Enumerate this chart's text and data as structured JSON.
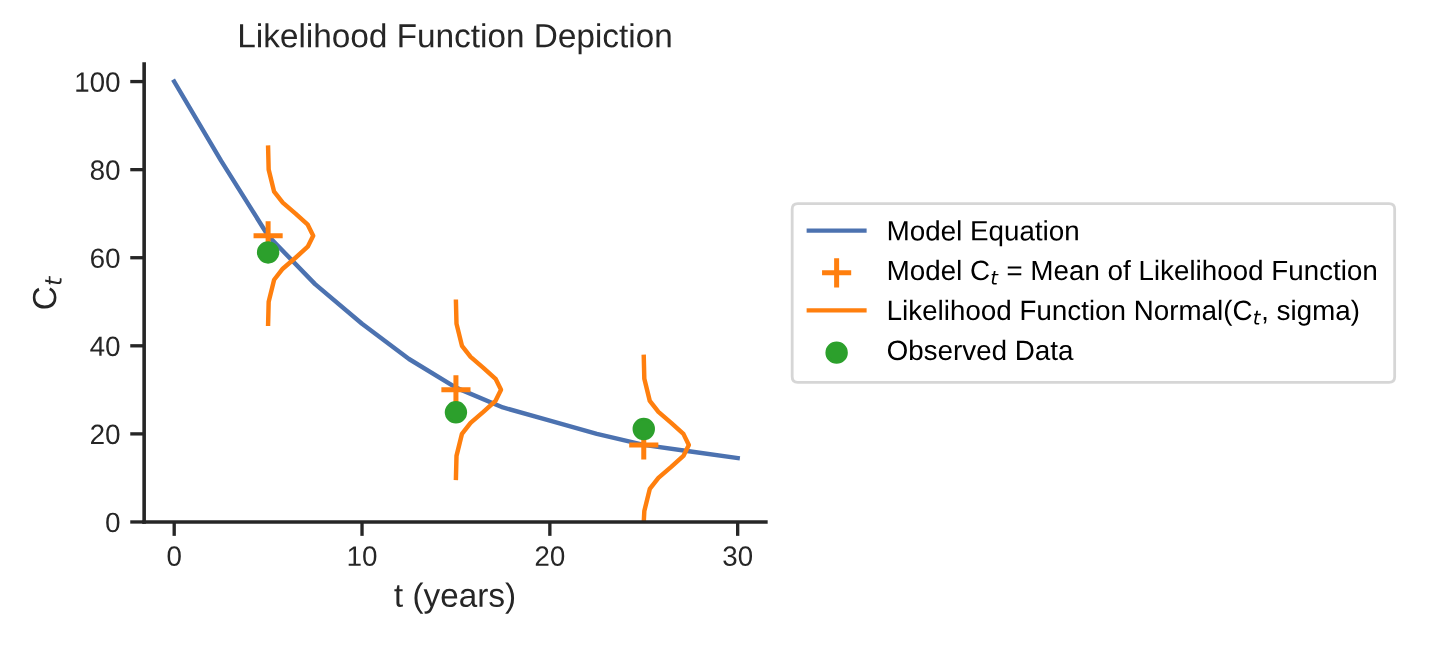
{
  "chart_data": {
    "type": "line",
    "title": "Likelihood Function Depiction",
    "xlabel": "t (years)",
    "ylabel": "C$_{t}$",
    "xlim": [
      -1.6,
      31.5
    ],
    "ylim": [
      0,
      104
    ],
    "xticks": [
      0,
      10,
      20,
      30
    ],
    "yticks": [
      0,
      20,
      40,
      60,
      80,
      100
    ],
    "grid": false,
    "legend": "right",
    "series": [
      {
        "name": "Model Equation",
        "color": "#4c72b0",
        "x": [
          0,
          2.5,
          5,
          7.5,
          10,
          12.5,
          15,
          17.5,
          20,
          22.5,
          25,
          27.5,
          30
        ],
        "values": [
          100,
          82,
          65,
          54,
          45,
          37,
          30.5,
          26,
          23,
          20,
          17.5,
          16,
          14.5
        ]
      },
      {
        "name": "Model C$_{t}$ = Mean of Likelihood Function",
        "type": "scatter",
        "marker": "cross",
        "color": "#ff7f0e",
        "x": [
          5,
          15,
          25
        ],
        "values": [
          65,
          30,
          17.5
        ]
      },
      {
        "name": "Likelihood Function Normal(C$_{t}$, sigma)",
        "color": "#ff7f0e",
        "x": [
          5,
          5.03,
          5.32,
          5.78,
          6.46,
          7.11,
          7.4,
          7.11,
          6.46,
          5.78,
          5.32,
          5.03,
          5
        ],
        "values": [
          45,
          50,
          55,
          57.5,
          60,
          62.5,
          65,
          67.5,
          70,
          72.5,
          75,
          80,
          85
        ]
      },
      {
        "name": "Observed Data",
        "type": "scatter",
        "marker": "circle",
        "color": "#2ca02c",
        "x": [
          5,
          15,
          25
        ],
        "values": [
          61.2,
          24.9,
          21.1
        ]
      },
      {
        "color": "#ff7f0e",
        "x": [
          15,
          15.03,
          15.32,
          15.78,
          16.46,
          17.11,
          17.4,
          17.11,
          16.46,
          15.78,
          15.32,
          15.03,
          15
        ],
        "values": [
          10,
          15,
          20,
          22.5,
          25,
          27.5,
          30,
          32.5,
          35,
          37.5,
          40,
          45,
          50
        ]
      },
      {
        "color": "#ff7f0e",
        "x": [
          25,
          25.03,
          25.32,
          25.78,
          26.46,
          27.11,
          27.4,
          27.11,
          26.46,
          25.78,
          25.32,
          25.03,
          25
        ],
        "values": [
          0,
          2.5,
          7.5,
          10,
          12.5,
          15,
          17.5,
          20,
          22.5,
          25,
          27.5,
          32.5,
          37.5
        ]
      }
    ]
  }
}
